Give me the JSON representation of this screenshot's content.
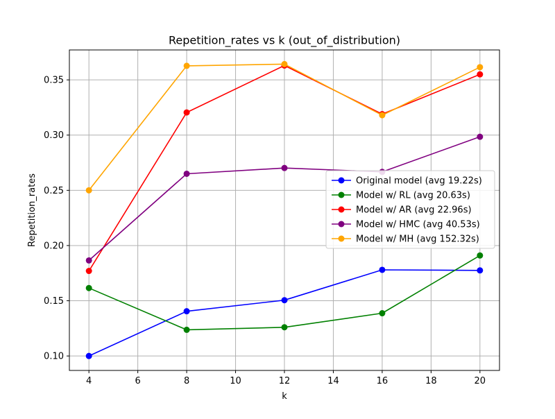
{
  "chart_data": {
    "type": "line",
    "title": "Repetition_rates vs k (out_of_distribution)",
    "xlabel": "k",
    "ylabel": "Repetition_rates",
    "xlim": [
      3.2,
      20.8
    ],
    "ylim": [
      0.0869,
      0.3771
    ],
    "xticks": [
      4,
      6,
      8,
      10,
      12,
      14,
      16,
      18,
      20
    ],
    "yticks": [
      0.1,
      0.15,
      0.2,
      0.25,
      0.3,
      0.35
    ],
    "ytick_labels": [
      "0.10",
      "0.15",
      "0.20",
      "0.25",
      "0.30",
      "0.35"
    ],
    "grid": true,
    "legend_position": "center-right",
    "x": [
      4,
      8,
      12,
      16,
      20
    ],
    "series": [
      {
        "name": "Original model (avg 19.22s)",
        "color": "#0000ff",
        "values": [
          0.1,
          0.1405,
          0.1505,
          0.178,
          0.1775
        ]
      },
      {
        "name": "Model w/ RL (avg 20.63s)",
        "color": "#008000",
        "values": [
          0.1615,
          0.1237,
          0.126,
          0.1387,
          0.191
        ]
      },
      {
        "name": "Model w/ AR (avg 22.96s)",
        "color": "#ff0000",
        "values": [
          0.177,
          0.3205,
          0.363,
          0.319,
          0.355
        ]
      },
      {
        "name": "Model w/ HMC (avg 40.53s)",
        "color": "#800080",
        "values": [
          0.1865,
          0.265,
          0.2702,
          0.2667,
          0.2985
        ]
      },
      {
        "name": "Model w/ MH (avg 152.32s)",
        "color": "#ffa500",
        "values": [
          0.25,
          0.3627,
          0.3643,
          0.318,
          0.3615
        ]
      }
    ]
  }
}
